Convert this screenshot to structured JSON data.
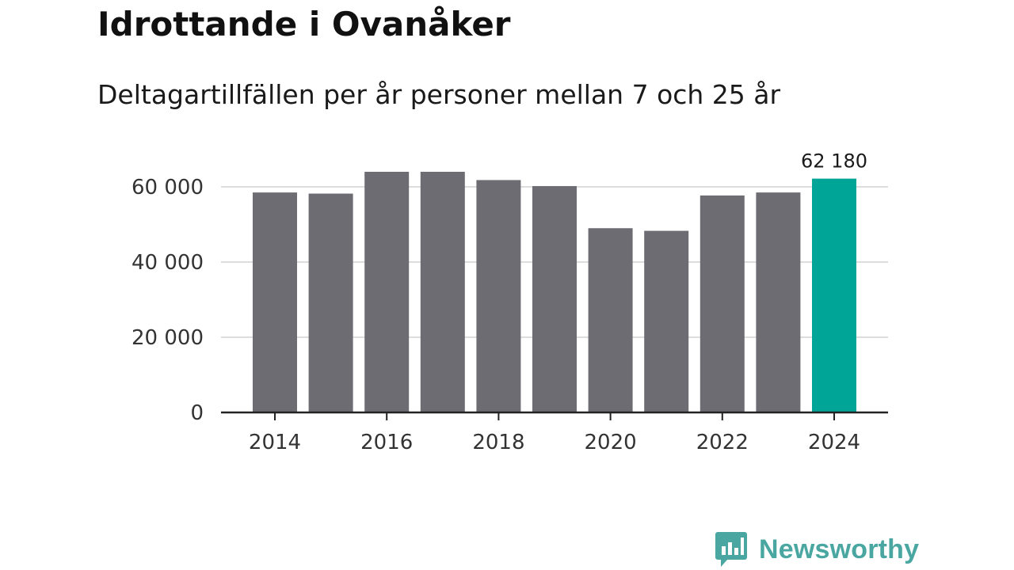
{
  "header": {
    "title": "Idrottande i Ovanåker",
    "subtitle": "Deltagartillfällen per år personer mellan 7 och 25 år"
  },
  "brand": {
    "name": "Newsworthy",
    "icon": "newsworthy-logo-icon",
    "color": "#4aa6a0"
  },
  "chart_data": {
    "type": "bar",
    "title": "Idrottande i Ovanåker",
    "subtitle": "Deltagartillfällen per år personer mellan 7 och 25 år",
    "xlabel": "",
    "ylabel": "",
    "categories": [
      "2014",
      "2015",
      "2016",
      "2017",
      "2018",
      "2019",
      "2020",
      "2021",
      "2022",
      "2023",
      "2024"
    ],
    "values": [
      58500,
      58200,
      64000,
      64000,
      61800,
      60200,
      49000,
      48300,
      57700,
      58500,
      62180
    ],
    "ylim": [
      0,
      68000
    ],
    "yticks": [
      0,
      20000,
      40000,
      60000
    ],
    "ytick_labels": [
      "0",
      "20 000",
      "40 000",
      "60 000"
    ],
    "xticks": [
      "2014",
      "2016",
      "2018",
      "2020",
      "2022",
      "2024"
    ],
    "highlight": {
      "category": "2024",
      "label": "62 180"
    },
    "grid": true,
    "colors": {
      "bar": "#6d6c73",
      "highlight": "#00a597",
      "grid": "#dddddd",
      "axis": "#222222"
    }
  }
}
